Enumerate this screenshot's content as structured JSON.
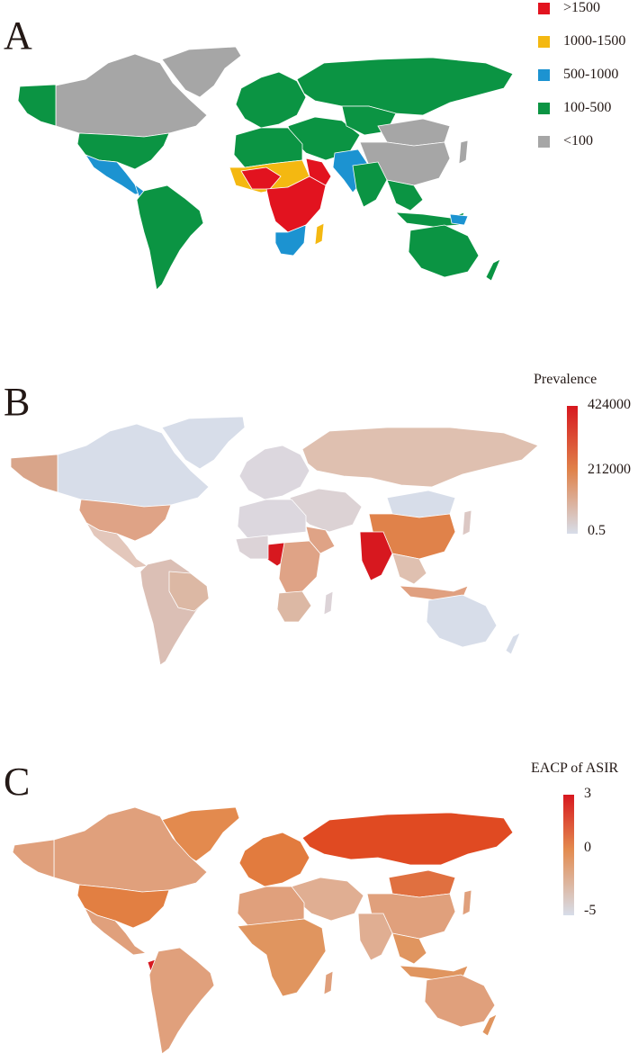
{
  "panels": {
    "a": {
      "letter": "A",
      "legend": [
        {
          "label": ">1500",
          "color": "#e2131f"
        },
        {
          "label": "1000-1500",
          "color": "#f4b811"
        },
        {
          "label": "500-1000",
          "color": "#1c93d1"
        },
        {
          "label": "100-500",
          "color": "#0b9443"
        },
        {
          "label": "<100",
          "color": "#a6a6a6"
        }
      ],
      "region_classes": {
        "north_america": "<100",
        "greenland": "<100",
        "alaska": "100-500",
        "usa": "100-500",
        "mexico": "500-1000",
        "central_america": "500-1000",
        "south_america": "100-500",
        "europe": "100-500",
        "russia": "100-500",
        "middle_east": "100-500",
        "north_africa": "100-500",
        "sahel": "1000-1500",
        "central_africa": ">1500",
        "east_africa": ">1500",
        "southern_africa": "500-1000",
        "madagascar": "1000-1500",
        "china": "<100",
        "mongolia": "<100",
        "japan": "<100",
        "south_asia": "500-1000",
        "southeast_asia": "100-500",
        "indonesia": "100-500",
        "australia": "100-500"
      }
    },
    "b": {
      "letter": "B",
      "legend_title": "Prevalence",
      "legend_ticks": [
        "424000",
        "212000",
        "0.5"
      ],
      "colors": {
        "low": "#d7dde9",
        "mid": "#e0824a",
        "high": "#d7181f"
      }
    },
    "c": {
      "letter": "C",
      "legend_title": "EACP of ASIR",
      "legend_ticks": [
        "3",
        "0",
        "-5"
      ],
      "colors": {
        "low": "#d7dde9",
        "mid": "#e38a4e",
        "high": "#d7181f"
      }
    }
  }
}
